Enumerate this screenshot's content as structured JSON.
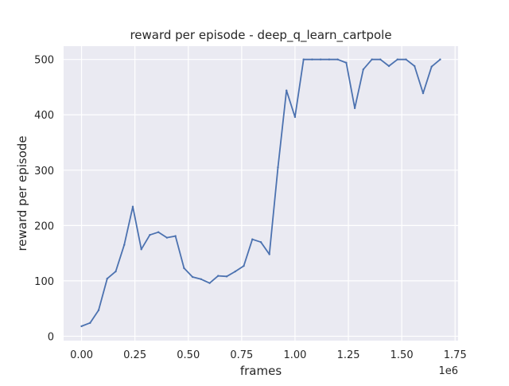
{
  "chart_data": {
    "type": "line",
    "title": "reward per episode - deep_q_learn_cartpole",
    "xlabel": "frames",
    "ylabel": "reward per episode",
    "x_offset_label": "1e6",
    "xlim": [
      -0.084,
      1.764
    ],
    "ylim": [
      -8,
      524
    ],
    "x_ticks": [
      0.0,
      0.25,
      0.5,
      0.75,
      1.0,
      1.25,
      1.5,
      1.75
    ],
    "x_tick_labels": [
      "0.00",
      "0.25",
      "0.50",
      "0.75",
      "1.00",
      "1.25",
      "1.50",
      "1.75"
    ],
    "y_ticks": [
      0,
      100,
      200,
      300,
      400,
      500
    ],
    "y_tick_labels": [
      "0",
      "100",
      "200",
      "300",
      "400",
      "500"
    ],
    "grid": true,
    "legend": false,
    "colors": {
      "background": "#eaeaf2",
      "grid": "#ffffff",
      "line": "#4c72b0"
    },
    "series": [
      {
        "x": [
          0.0,
          0.04,
          0.08,
          0.12,
          0.16,
          0.2,
          0.24,
          0.28,
          0.32,
          0.36,
          0.4,
          0.44,
          0.48,
          0.52,
          0.56,
          0.6,
          0.64,
          0.68,
          0.72,
          0.76,
          0.8,
          0.84,
          0.88,
          0.92,
          0.96,
          1.0,
          1.04,
          1.08,
          1.12,
          1.16,
          1.2,
          1.24,
          1.28,
          1.32,
          1.36,
          1.4,
          1.44,
          1.48,
          1.52,
          1.56,
          1.6,
          1.64,
          1.68
        ],
        "values": [
          18,
          24,
          47,
          104,
          117,
          165,
          234,
          157,
          183,
          188,
          178,
          181,
          123,
          107,
          103,
          96,
          109,
          108,
          117,
          127,
          175,
          170,
          148,
          305,
          444,
          396,
          500,
          500,
          500,
          500,
          500,
          494,
          412,
          482,
          500,
          500,
          488,
          500,
          500,
          488,
          439,
          487,
          500
        ]
      }
    ]
  }
}
